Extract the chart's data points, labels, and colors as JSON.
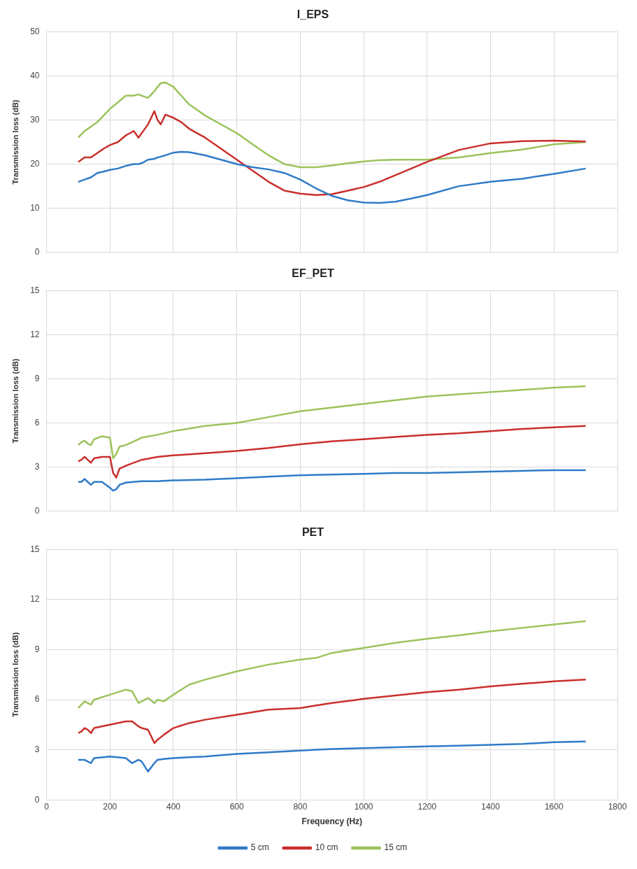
{
  "chart_data": [
    {
      "type": "line",
      "title": "I_EPS",
      "ylabel": "Transmission loss (dB)",
      "xlim": [
        0,
        1800
      ],
      "xticks": [
        0,
        200,
        400,
        600,
        800,
        1000,
        1200,
        1400,
        1600,
        1800
      ],
      "ylim": [
        0,
        50
      ],
      "yticks": [
        0,
        10,
        20,
        30,
        40,
        50
      ],
      "grid": true,
      "tick_labels": "y",
      "marker": "none",
      "x": [
        100,
        120,
        140,
        160,
        180,
        200,
        225,
        250,
        275,
        290,
        300,
        320,
        340,
        350,
        360,
        375,
        400,
        425,
        450,
        500,
        550,
        600,
        650,
        700,
        750,
        800,
        850,
        900,
        950,
        1000,
        1050,
        1100,
        1150,
        1200,
        1300,
        1400,
        1500,
        1600,
        1700
      ],
      "series": [
        {
          "color": "#2f7bc8",
          "values": [
            16,
            16.5,
            17,
            18,
            18.3,
            18.7,
            19,
            19.6,
            20,
            20,
            20.2,
            21,
            21.2,
            21.5,
            21.7,
            22,
            22.6,
            22.8,
            22.7,
            22,
            21,
            20,
            19.3,
            18.8,
            18,
            16.5,
            14.5,
            12.8,
            11.8,
            11.3,
            11.2,
            11.5,
            12.2,
            13,
            15,
            16,
            16.7,
            17.8,
            19
          ]
        },
        {
          "color": "#c9302c",
          "values": [
            20.5,
            21.5,
            21.5,
            22.5,
            23.5,
            24.3,
            25,
            26.5,
            27.5,
            26,
            27,
            29,
            32,
            30,
            29,
            31.2,
            30.5,
            29.5,
            28,
            26,
            23.5,
            21,
            18.5,
            16,
            14,
            13.3,
            13,
            13.2,
            14,
            14.8,
            16,
            17.5,
            19,
            20.5,
            23.2,
            24.7,
            25.2,
            25.3,
            25.1
          ]
        },
        {
          "color": "#9cc35c",
          "values": [
            26,
            27.5,
            28.5,
            29.5,
            31,
            32.5,
            34,
            35.5,
            35.5,
            35.8,
            35.5,
            35,
            36.5,
            37.5,
            38.3,
            38.5,
            37.5,
            35.5,
            33.5,
            31,
            29,
            27,
            24.5,
            22,
            20,
            19.3,
            19.3,
            19.7,
            20.2,
            20.6,
            20.9,
            21,
            21,
            21,
            21.5,
            22.5,
            23.3,
            24.5,
            25
          ]
        }
      ]
    },
    {
      "type": "line",
      "title": "EF_PET",
      "ylabel": "Transmission loss (dB)",
      "xlim": [
        0,
        1800
      ],
      "xticks": [
        0,
        200,
        400,
        600,
        800,
        1000,
        1200,
        1400,
        1600,
        1800
      ],
      "ylim": [
        0,
        15
      ],
      "yticks": [
        0,
        3,
        6,
        9,
        12,
        15
      ],
      "grid": true,
      "tick_labels": "y",
      "marker": "none",
      "x": [
        100,
        110,
        120,
        130,
        140,
        150,
        175,
        200,
        210,
        220,
        230,
        250,
        300,
        350,
        400,
        500,
        600,
        700,
        800,
        900,
        1000,
        1100,
        1200,
        1300,
        1400,
        1500,
        1600,
        1700
      ],
      "series": [
        {
          "color": "#2f7bc8",
          "values": [
            2,
            2,
            2.2,
            2,
            1.8,
            2,
            2,
            1.6,
            1.4,
            1.5,
            1.8,
            1.95,
            2.05,
            2.05,
            2.1,
            2.15,
            2.25,
            2.35,
            2.45,
            2.5,
            2.55,
            2.6,
            2.6,
            2.65,
            2.7,
            2.75,
            2.8,
            2.8
          ]
        },
        {
          "color": "#c9302c",
          "values": [
            3.4,
            3.5,
            3.7,
            3.5,
            3.3,
            3.6,
            3.7,
            3.7,
            2.6,
            2.3,
            2.9,
            3.1,
            3.5,
            3.7,
            3.8,
            3.95,
            4.1,
            4.3,
            4.55,
            4.75,
            4.9,
            5.05,
            5.2,
            5.3,
            5.45,
            5.6,
            5.7,
            5.8
          ]
        },
        {
          "color": "#9cc35c",
          "values": [
            4.5,
            4.7,
            4.8,
            4.6,
            4.5,
            4.9,
            5.1,
            5,
            3.6,
            3.9,
            4.4,
            4.5,
            5,
            5.2,
            5.45,
            5.8,
            6,
            6.4,
            6.8,
            7.05,
            7.3,
            7.55,
            7.8,
            7.95,
            8.1,
            8.25,
            8.4,
            8.5
          ]
        }
      ]
    },
    {
      "type": "line",
      "title": "PET",
      "xlabel": "Frequency (Hz)",
      "ylabel": "Transmission loss (dB)",
      "xlim": [
        0,
        1800
      ],
      "xticks": [
        0,
        200,
        400,
        600,
        800,
        1000,
        1200,
        1400,
        1600,
        1800
      ],
      "ylim": [
        0,
        15
      ],
      "yticks": [
        0,
        3,
        6,
        9,
        12,
        15
      ],
      "grid": true,
      "legend": "bottom",
      "marker": "none",
      "x": [
        100,
        110,
        120,
        130,
        140,
        150,
        200,
        250,
        270,
        290,
        300,
        320,
        340,
        350,
        370,
        400,
        450,
        500,
        600,
        700,
        800,
        850,
        900,
        1000,
        1100,
        1200,
        1300,
        1400,
        1500,
        1600,
        1700
      ],
      "series": [
        {
          "name": "5 cm",
          "color": "#2f7bc8",
          "values": [
            2.4,
            2.4,
            2.4,
            2.3,
            2.2,
            2.5,
            2.6,
            2.5,
            2.2,
            2.4,
            2.3,
            1.7,
            2.2,
            2.4,
            2.45,
            2.5,
            2.55,
            2.6,
            2.75,
            2.85,
            2.95,
            3,
            3.05,
            3.1,
            3.15,
            3.2,
            3.25,
            3.3,
            3.35,
            3.45,
            3.5
          ]
        },
        {
          "name": "10 cm",
          "color": "#c9302c",
          "values": [
            4,
            4.1,
            4.3,
            4.2,
            4,
            4.3,
            4.5,
            4.7,
            4.7,
            4.4,
            4.3,
            4.2,
            3.4,
            3.6,
            3.9,
            4.3,
            4.6,
            4.8,
            5.1,
            5.4,
            5.5,
            5.65,
            5.8,
            6.05,
            6.25,
            6.45,
            6.6,
            6.8,
            6.95,
            7.1,
            7.2
          ]
        },
        {
          "name": "15 cm",
          "color": "#9cc35c",
          "values": [
            5.5,
            5.7,
            5.9,
            5.8,
            5.7,
            6,
            6.3,
            6.6,
            6.5,
            5.8,
            5.9,
            6.1,
            5.8,
            6,
            5.9,
            6.3,
            6.9,
            7.2,
            7.7,
            8.1,
            8.4,
            8.5,
            8.8,
            9.1,
            9.4,
            9.65,
            9.85,
            10.1,
            10.3,
            10.5,
            10.7
          ]
        }
      ]
    }
  ]
}
